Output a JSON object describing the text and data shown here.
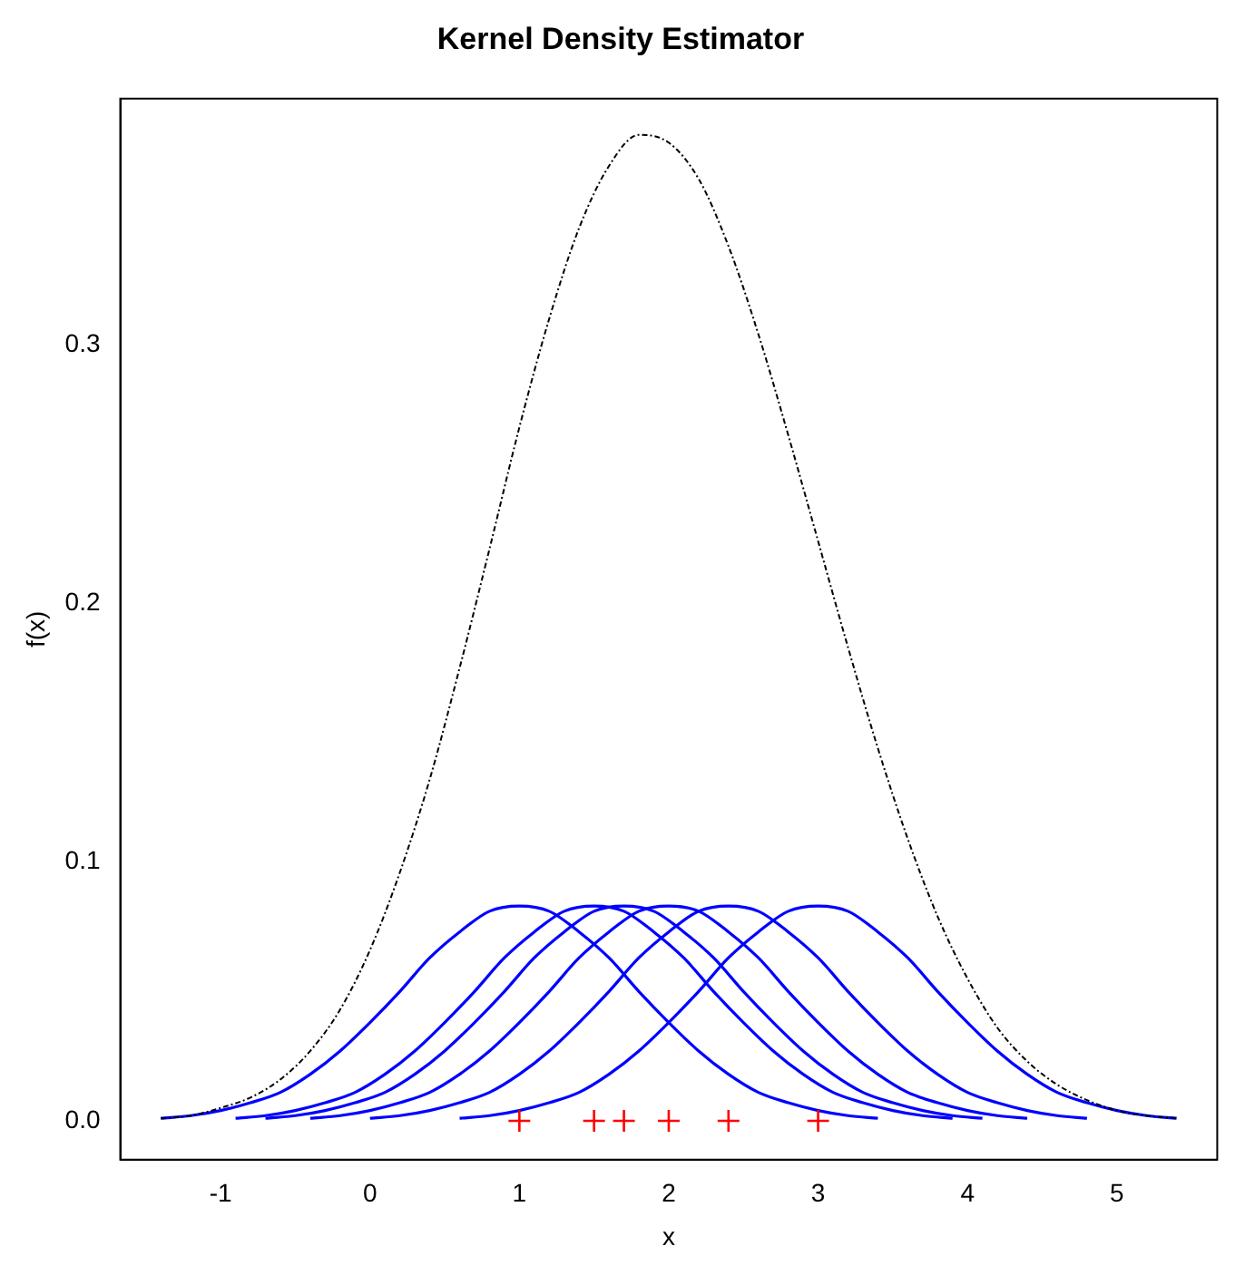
{
  "chart_data": {
    "type": "line",
    "title": "Kernel Density Estimator",
    "xlabel": "x",
    "ylabel": "f(x)",
    "xlim": [
      -1.672,
      5.672
    ],
    "xticks": [
      -1,
      0,
      1,
      2,
      3,
      4,
      5
    ],
    "ylim": [
      -0.015,
      0.395
    ],
    "yticks": [
      {
        "value": 0,
        "label": "0.0"
      },
      {
        "value": 0.1,
        "label": "0.1"
      },
      {
        "value": 0.2,
        "label": "0.2"
      },
      {
        "value": 0.3,
        "label": "0.3"
      }
    ],
    "grid": false,
    "series": [
      {
        "type": "line",
        "color": "#0000ff",
        "marker": "none",
        "line_style": "solid",
        "x": [
          -1.4,
          -1.2,
          -1.0,
          -0.8,
          -0.6,
          -0.4,
          -0.2,
          0,
          0.2,
          0.4,
          0.6,
          0.8,
          1.0,
          1.2,
          1.4,
          1.6,
          1.8,
          2.0,
          2.2,
          2.4,
          2.6,
          2.8,
          3.0,
          3.2,
          3.4
        ],
        "values": [
          0.001,
          0.002,
          0.004,
          0.007,
          0.011,
          0.018,
          0.027,
          0.038,
          0.05,
          0.063,
          0.073,
          0.081,
          0.083,
          0.081,
          0.073,
          0.063,
          0.05,
          0.038,
          0.027,
          0.018,
          0.011,
          0.007,
          0.004,
          0.002,
          0.001
        ]
      },
      {
        "type": "line",
        "color": "#0000ff",
        "marker": "none",
        "line_style": "solid",
        "x": [
          -0.9,
          -0.7,
          -0.5,
          -0.3,
          -0.1,
          0.1,
          0.3,
          0.5,
          0.7,
          0.9,
          1.1,
          1.3,
          1.5,
          1.7,
          1.9,
          2.1,
          2.3,
          2.5,
          2.7,
          2.9,
          3.1,
          3.3,
          3.5,
          3.7,
          3.9
        ],
        "values": [
          0.001,
          0.002,
          0.004,
          0.007,
          0.011,
          0.018,
          0.027,
          0.038,
          0.05,
          0.063,
          0.073,
          0.081,
          0.083,
          0.081,
          0.073,
          0.063,
          0.05,
          0.038,
          0.027,
          0.018,
          0.011,
          0.007,
          0.004,
          0.002,
          0.001
        ]
      },
      {
        "type": "line",
        "color": "#0000ff",
        "marker": "none",
        "line_style": "solid",
        "x": [
          -0.7,
          -0.5,
          -0.3,
          -0.1,
          0.1,
          0.3,
          0.5,
          0.7,
          0.9,
          1.1,
          1.3,
          1.5,
          1.7,
          1.9,
          2.1,
          2.3,
          2.5,
          2.7,
          2.9,
          3.1,
          3.3,
          3.5,
          3.7,
          3.9,
          4.1
        ],
        "values": [
          0.001,
          0.002,
          0.004,
          0.007,
          0.011,
          0.018,
          0.027,
          0.038,
          0.05,
          0.063,
          0.073,
          0.081,
          0.083,
          0.081,
          0.073,
          0.063,
          0.05,
          0.038,
          0.027,
          0.018,
          0.011,
          0.007,
          0.004,
          0.002,
          0.001
        ]
      },
      {
        "type": "line",
        "color": "#0000ff",
        "marker": "none",
        "line_style": "solid",
        "x": [
          -0.4,
          -0.2,
          0,
          0.2,
          0.4,
          0.6,
          0.8,
          1.0,
          1.2,
          1.4,
          1.6,
          1.8,
          2.0,
          2.2,
          2.4,
          2.6,
          2.8,
          3.0,
          3.2,
          3.4,
          3.6,
          3.8,
          4.0,
          4.2,
          4.4
        ],
        "values": [
          0.001,
          0.002,
          0.004,
          0.007,
          0.011,
          0.018,
          0.027,
          0.038,
          0.05,
          0.063,
          0.073,
          0.081,
          0.083,
          0.081,
          0.073,
          0.063,
          0.05,
          0.038,
          0.027,
          0.018,
          0.011,
          0.007,
          0.004,
          0.002,
          0.001
        ]
      },
      {
        "type": "line",
        "color": "#0000ff",
        "marker": "none",
        "line_style": "solid",
        "x": [
          0,
          0.2,
          0.4,
          0.6,
          0.8,
          1.0,
          1.2,
          1.4,
          1.6,
          1.8,
          2.0,
          2.2,
          2.4,
          2.6,
          2.8,
          3.0,
          3.2,
          3.4,
          3.6,
          3.8,
          4.0,
          4.2,
          4.4,
          4.6,
          4.8
        ],
        "values": [
          0.001,
          0.002,
          0.004,
          0.007,
          0.011,
          0.018,
          0.027,
          0.038,
          0.05,
          0.063,
          0.073,
          0.081,
          0.083,
          0.081,
          0.073,
          0.063,
          0.05,
          0.038,
          0.027,
          0.018,
          0.011,
          0.007,
          0.004,
          0.002,
          0.001
        ]
      },
      {
        "type": "line",
        "color": "#0000ff",
        "marker": "none",
        "line_style": "solid",
        "x": [
          0.6,
          0.8,
          1.0,
          1.2,
          1.4,
          1.6,
          1.8,
          2.0,
          2.2,
          2.4,
          2.6,
          2.8,
          3.0,
          3.2,
          3.4,
          3.6,
          3.8,
          4.0,
          4.2,
          4.4,
          4.6,
          4.8,
          5.0,
          5.2,
          5.4
        ],
        "values": [
          0.001,
          0.002,
          0.004,
          0.007,
          0.011,
          0.018,
          0.027,
          0.038,
          0.05,
          0.063,
          0.073,
          0.081,
          0.083,
          0.081,
          0.073,
          0.063,
          0.05,
          0.038,
          0.027,
          0.018,
          0.011,
          0.007,
          0.004,
          0.002,
          0.001
        ]
      },
      {
        "type": "line",
        "color": "#000000",
        "marker": "none",
        "line_style": "dashed",
        "x": [
          -1.4,
          -1.2,
          -1.0,
          -0.8,
          -0.6,
          -0.4,
          -0.2,
          0,
          0.2,
          0.4,
          0.6,
          0.8,
          1.0,
          1.2,
          1.4,
          1.6,
          1.8,
          2.0,
          2.2,
          2.4,
          2.6,
          2.8,
          3.0,
          3.2,
          3.4,
          3.6,
          3.8,
          4.0,
          4.2,
          4.4,
          4.6,
          4.8,
          5.0,
          5.2,
          5.4
        ],
        "values": [
          0.001,
          0.002,
          0.005,
          0.009,
          0.016,
          0.027,
          0.043,
          0.066,
          0.096,
          0.132,
          0.175,
          0.221,
          0.268,
          0.31,
          0.345,
          0.369,
          0.381,
          0.378,
          0.364,
          0.338,
          0.304,
          0.265,
          0.224,
          0.183,
          0.144,
          0.109,
          0.079,
          0.055,
          0.036,
          0.023,
          0.014,
          0.008,
          0.004,
          0.002,
          0.001
        ]
      },
      {
        "type": "scatter",
        "color": "#ff0000",
        "marker": "cross",
        "x": [
          1,
          1.5,
          1.7,
          2,
          2.4,
          3
        ],
        "values": [
          0,
          0,
          0,
          0,
          0,
          0
        ]
      }
    ]
  }
}
